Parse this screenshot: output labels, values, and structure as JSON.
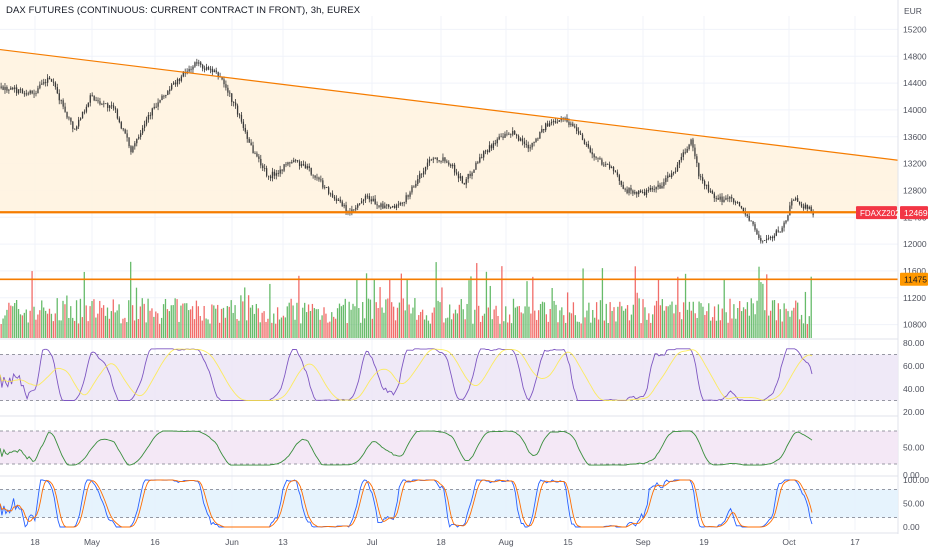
{
  "header": {
    "symbol_title": "DAX FUTURES (CONTINUOUS: CURRENT CONTRACT IN FRONT), 3h, EUREX",
    "currency": "EUR"
  },
  "colors": {
    "up": "#26a69a",
    "down": "#ef5350",
    "vol_up": "#4caf50",
    "vol_down": "#ef5350",
    "orange_line": "#f57c00",
    "triangle_fill": "#fff3e0",
    "price_badge": "#f23645",
    "level_badge": "#ff9800",
    "rsi_line": "#7e57c2",
    "rsi_band": "#ede7f6",
    "osc_line": "#388e3c",
    "osc_band": "#f3e5f5",
    "stoch_k": "#2962ff",
    "stoch_d": "#ff6d00",
    "stoch_band": "#e3f2fd",
    "candle": "#3a3a3a"
  },
  "chart_data": [
    {
      "type": "candlestick",
      "name": "price",
      "title": "DAX FUTURES (CONTINUOUS: CURRENT CONTRACT IN FRONT), 3h, EUREX",
      "y_unit": "EUR",
      "y_ticks": [
        15200,
        14800,
        14400,
        14000,
        13600,
        13200,
        12800,
        12400,
        12000,
        11600,
        11200,
        10800
      ],
      "ylim": [
        10600,
        15400
      ],
      "x_ticks": [
        "18",
        "May",
        "16",
        "Jun",
        "13",
        "Jul",
        "18",
        "Aug",
        "15",
        "Sep",
        "19",
        "Oct",
        "17"
      ],
      "close_path": [
        [
          0,
          14330
        ],
        [
          0.04,
          14250
        ],
        [
          0.06,
          14480
        ],
        [
          0.09,
          13700
        ],
        [
          0.11,
          14200
        ],
        [
          0.14,
          14000
        ],
        [
          0.16,
          13400
        ],
        [
          0.18,
          13900
        ],
        [
          0.21,
          14350
        ],
        [
          0.24,
          14700
        ],
        [
          0.27,
          14500
        ],
        [
          0.29,
          14000
        ],
        [
          0.31,
          13400
        ],
        [
          0.33,
          13000
        ],
        [
          0.36,
          13250
        ],
        [
          0.38,
          13100
        ],
        [
          0.41,
          12700
        ],
        [
          0.43,
          12450
        ],
        [
          0.45,
          12700
        ],
        [
          0.47,
          12550
        ],
        [
          0.49,
          12550
        ],
        [
          0.51,
          12900
        ],
        [
          0.53,
          13300
        ],
        [
          0.55,
          13250
        ],
        [
          0.57,
          12900
        ],
        [
          0.59,
          13300
        ],
        [
          0.61,
          13550
        ],
        [
          0.63,
          13650
        ],
        [
          0.65,
          13450
        ],
        [
          0.67,
          13750
        ],
        [
          0.69,
          13900
        ],
        [
          0.71,
          13700
        ],
        [
          0.73,
          13300
        ],
        [
          0.75,
          13150
        ],
        [
          0.77,
          12800
        ],
        [
          0.79,
          12750
        ],
        [
          0.81,
          12850
        ],
        [
          0.83,
          13100
        ],
        [
          0.85,
          13550
        ],
        [
          0.86,
          13000
        ],
        [
          0.88,
          12650
        ],
        [
          0.9,
          12700
        ],
        [
          0.92,
          12400
        ],
        [
          0.935,
          12050
        ],
        [
          0.95,
          12100
        ],
        [
          0.965,
          12300
        ],
        [
          0.975,
          12700
        ],
        [
          0.985,
          12600
        ],
        [
          1.0,
          12469
        ]
      ],
      "trendline_upper": {
        "from": 14900,
        "to": 13250
      },
      "support_level": 12475,
      "horizontal_level": 11475,
      "last_price": 12469,
      "series": [
        {
          "name": "FDAXZ2022",
          "value": 12469
        }
      ],
      "badges": {
        "symbol": "FDAXZ2022",
        "last": "12469",
        "level": "11475"
      }
    },
    {
      "type": "bar",
      "name": "volume"
    },
    {
      "type": "line",
      "name": "rsi",
      "y_ticks": [
        "80.00",
        "60.00",
        "40.00",
        "20.00"
      ],
      "ylim": [
        20,
        80
      ],
      "bands": [
        30,
        70
      ]
    },
    {
      "type": "line",
      "name": "oscillator",
      "y_ticks": [
        "50.00",
        "0.00"
      ],
      "ylim": [
        0,
        100
      ],
      "bands": [
        20,
        80
      ]
    },
    {
      "type": "line",
      "name": "stochastic",
      "y_ticks": [
        "100.00",
        "50.00",
        "0.00"
      ],
      "ylim": [
        0,
        100
      ],
      "bands": [
        20,
        80
      ]
    }
  ]
}
